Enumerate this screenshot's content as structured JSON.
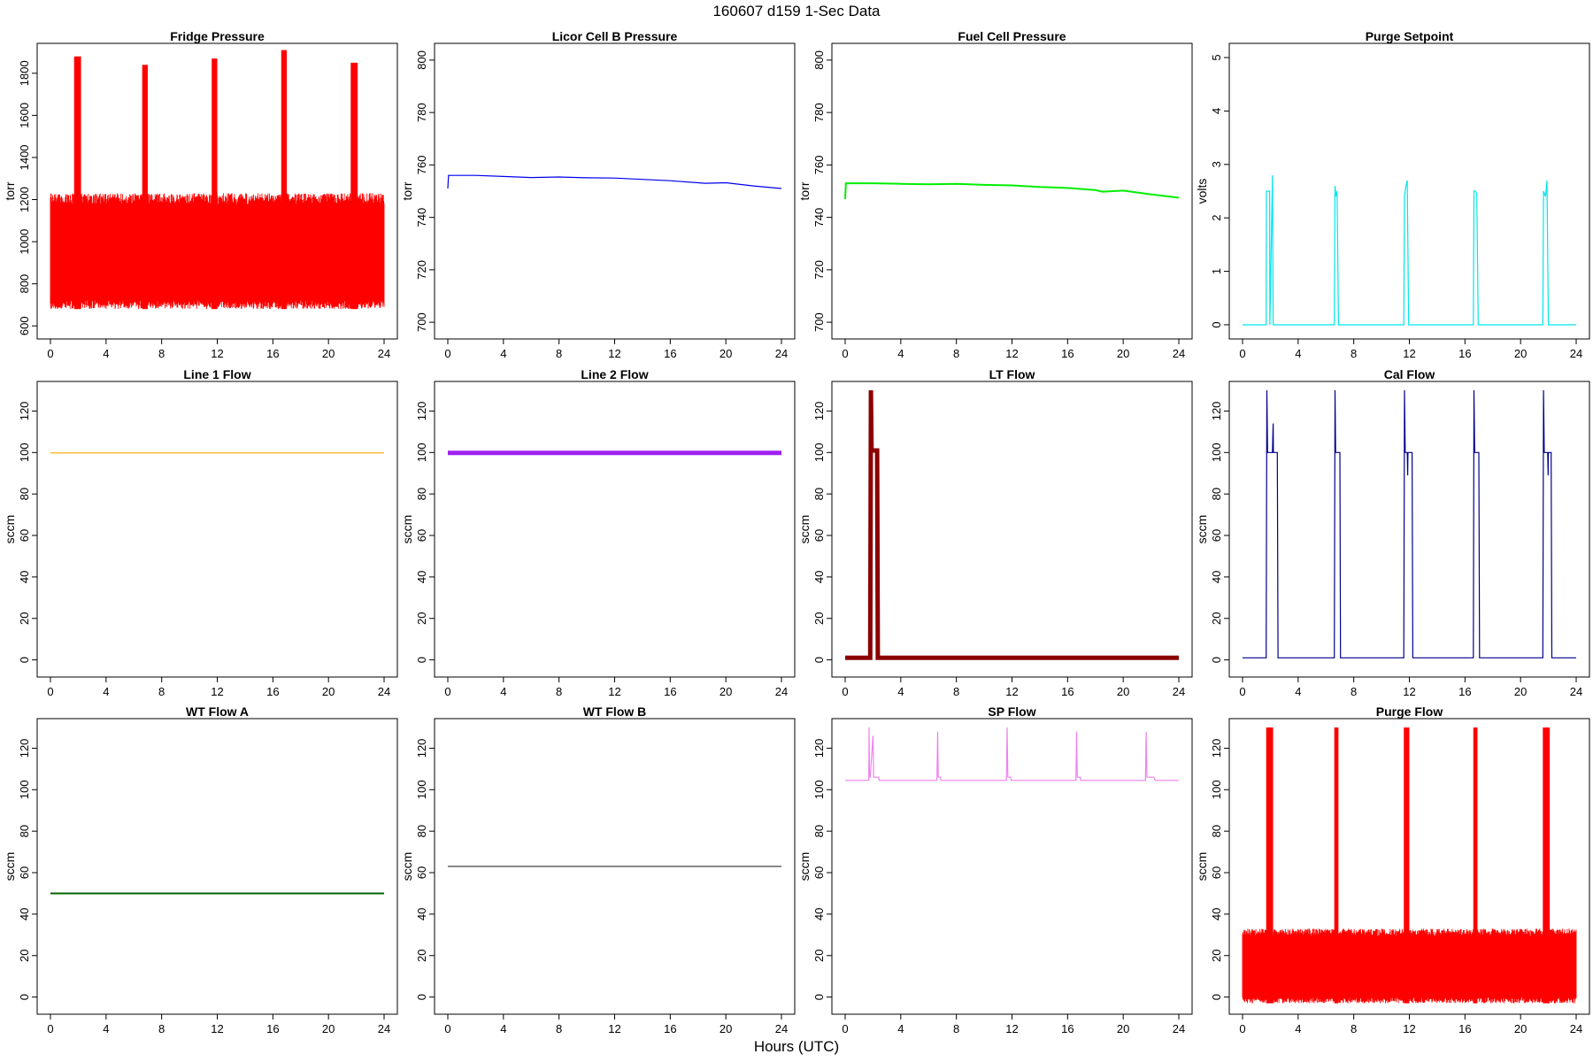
{
  "page": {
    "title": "160607   d159   1-Sec Data",
    "xlabel": "Hours (UTC)"
  },
  "chart_data": [
    {
      "id": "fridge_pressure",
      "type": "line",
      "title": "Fridge Pressure",
      "ylabel": "torr",
      "color": "#ff0000",
      "xlim": [
        0,
        24
      ],
      "ylim": [
        580,
        1900
      ],
      "xticks": [
        0,
        4,
        8,
        12,
        16,
        20,
        24
      ],
      "yticks": [
        600,
        800,
        1000,
        1200,
        1400,
        1600,
        1800
      ],
      "baseline": {
        "low": 680,
        "high": 1230
      },
      "spikes": [
        {
          "start": 1.7,
          "end": 2.2,
          "value": 1880
        },
        {
          "start": 6.6,
          "end": 7.0,
          "value": 1840
        },
        {
          "start": 11.6,
          "end": 12.0,
          "value": 1870
        },
        {
          "start": 16.6,
          "end": 17.0,
          "value": 1910
        },
        {
          "start": 21.6,
          "end": 22.1,
          "value": 1850
        }
      ]
    },
    {
      "id": "licor_cell_b_pressure",
      "type": "line",
      "title": "Licor Cell B Pressure",
      "ylabel": "torr",
      "color": "#0000ee",
      "xlim": [
        0,
        24
      ],
      "ylim": [
        697,
        803
      ],
      "xticks": [
        0,
        4,
        8,
        12,
        16,
        20,
        24
      ],
      "yticks": [
        700,
        720,
        740,
        760,
        780,
        800
      ],
      "x": [
        0,
        0.05,
        2,
        4,
        6,
        8,
        10,
        12,
        14,
        16,
        18,
        18.5,
        20,
        22,
        24
      ],
      "y": [
        751,
        756,
        756,
        755.6,
        755.2,
        755.4,
        755.1,
        755,
        754.5,
        754,
        753.2,
        753,
        753.2,
        752,
        751
      ]
    },
    {
      "id": "fuel_cell_pressure",
      "type": "line",
      "title": "Fuel Cell Pressure",
      "ylabel": "torr",
      "color": "#00ee00",
      "xlim": [
        0,
        24
      ],
      "ylim": [
        697,
        803
      ],
      "xticks": [
        0,
        4,
        8,
        12,
        16,
        20,
        24
      ],
      "yticks": [
        700,
        720,
        740,
        760,
        780,
        800
      ],
      "x": [
        0,
        0.05,
        2,
        4,
        6,
        8,
        10,
        12,
        14,
        16,
        18,
        18.5,
        20,
        22,
        24
      ],
      "y": [
        747,
        753,
        753,
        752.8,
        752.6,
        752.8,
        752.4,
        752.2,
        751.6,
        751.2,
        750.4,
        749.8,
        750.2,
        748.8,
        747.5
      ]
    },
    {
      "id": "purge_setpoint",
      "type": "line",
      "title": "Purge Setpoint",
      "ylabel": "volts",
      "color": "#00e5ee",
      "xlim": [
        0,
        24
      ],
      "ylim": [
        -0.1,
        5.1
      ],
      "xticks": [
        0,
        4,
        8,
        12,
        16,
        20,
        24
      ],
      "yticks": [
        0,
        1,
        2,
        3,
        4,
        5
      ],
      "x": [
        0,
        1.7,
        1.72,
        1.95,
        1.97,
        2.15,
        2.2,
        2.3,
        6.6,
        6.65,
        6.72,
        6.8,
        6.9,
        11.6,
        11.65,
        11.75,
        11.85,
        11.95,
        16.6,
        16.65,
        16.75,
        16.85,
        16.95,
        21.6,
        21.65,
        21.8,
        21.9,
        22.0,
        24
      ],
      "y": [
        0,
        0,
        2.5,
        2.5,
        0,
        2.8,
        0,
        0,
        0,
        2.6,
        2.4,
        2.5,
        0,
        0,
        2.4,
        2.6,
        2.7,
        0,
        0,
        2.5,
        2.5,
        2.45,
        0,
        0,
        2.5,
        2.4,
        2.7,
        0,
        0
      ]
    },
    {
      "id": "line_1_flow",
      "type": "line",
      "title": "Line 1 Flow",
      "ylabel": "sccm",
      "color": "#ffa500",
      "xlim": [
        0,
        24
      ],
      "ylim": [
        -4,
        130
      ],
      "xticks": [
        0,
        4,
        8,
        12,
        16,
        20,
        24
      ],
      "yticks": [
        0,
        20,
        40,
        60,
        80,
        100,
        120
      ],
      "x": [
        0,
        24
      ],
      "y": [
        99.8,
        99.8
      ]
    },
    {
      "id": "line_2_flow",
      "type": "line",
      "title": "Line 2 Flow",
      "ylabel": "sccm",
      "color": "#a020f0",
      "xlim": [
        0,
        24
      ],
      "ylim": [
        -4,
        130
      ],
      "xticks": [
        0,
        4,
        8,
        12,
        16,
        20,
        24
      ],
      "yticks": [
        0,
        20,
        40,
        60,
        80,
        100,
        120
      ],
      "x": [
        0,
        24
      ],
      "y": [
        99.8,
        99.8
      ]
    },
    {
      "id": "lt_flow",
      "type": "line",
      "title": "LT Flow",
      "ylabel": "sccm",
      "color": "#8b0000",
      "xlim": [
        0,
        24
      ],
      "ylim": [
        -4,
        130
      ],
      "xticks": [
        0,
        4,
        8,
        12,
        16,
        20,
        24
      ],
      "yticks": [
        0,
        20,
        40,
        60,
        80,
        100,
        120
      ],
      "x": [
        0,
        1.8,
        1.85,
        1.9,
        2.3,
        2.35,
        24
      ],
      "y": [
        1,
        1,
        130,
        101,
        101,
        1,
        1
      ]
    },
    {
      "id": "cal_flow",
      "type": "line",
      "title": "Cal Flow",
      "ylabel": "sccm",
      "color": "#00008b",
      "xlim": [
        0,
        24
      ],
      "ylim": [
        -4,
        130
      ],
      "xticks": [
        0,
        4,
        8,
        12,
        16,
        20,
        24
      ],
      "yticks": [
        0,
        20,
        40,
        60,
        80,
        100,
        120
      ],
      "x": [
        0,
        1.7,
        1.75,
        1.8,
        2.15,
        2.2,
        2.22,
        2.25,
        2.5,
        2.55,
        6.6,
        6.65,
        6.7,
        7.0,
        7.05,
        11.6,
        11.65,
        11.7,
        11.85,
        11.88,
        11.9,
        12.2,
        12.25,
        16.6,
        16.65,
        16.7,
        17.0,
        17.05,
        21.6,
        21.65,
        21.7,
        21.95,
        21.98,
        22.0,
        22.2,
        22.25,
        24
      ],
      "y": [
        1,
        1,
        130,
        100,
        100,
        114,
        100,
        100,
        100,
        1,
        1,
        130,
        100,
        100,
        1,
        1,
        130,
        100,
        100,
        89,
        100,
        100,
        1,
        1,
        130,
        100,
        100,
        1,
        1,
        130,
        100,
        100,
        89,
        100,
        100,
        1,
        1
      ]
    },
    {
      "id": "wt_flow_a",
      "type": "line",
      "title": "WT Flow A",
      "ylabel": "sccm",
      "color": "#006400",
      "xlim": [
        0,
        24
      ],
      "ylim": [
        -4,
        130
      ],
      "xticks": [
        0,
        4,
        8,
        12,
        16,
        20,
        24
      ],
      "yticks": [
        0,
        20,
        40,
        60,
        80,
        100,
        120
      ],
      "x": [
        0,
        24
      ],
      "y": [
        50,
        50
      ]
    },
    {
      "id": "wt_flow_b",
      "type": "line",
      "title": "WT Flow B",
      "ylabel": "sccm",
      "color": "#888888",
      "xlim": [
        0,
        24
      ],
      "ylim": [
        -4,
        130
      ],
      "xticks": [
        0,
        4,
        8,
        12,
        16,
        20,
        24
      ],
      "yticks": [
        0,
        20,
        40,
        60,
        80,
        100,
        120
      ],
      "x": [
        0,
        24
      ],
      "y": [
        63,
        63
      ]
    },
    {
      "id": "sp_flow",
      "type": "line",
      "title": "SP Flow",
      "ylabel": "sccm",
      "color": "#ee82ee",
      "xlim": [
        0,
        24
      ],
      "ylim": [
        -4,
        130
      ],
      "xticks": [
        0,
        4,
        8,
        12,
        16,
        20,
        24
      ],
      "yticks": [
        0,
        20,
        40,
        60,
        80,
        100,
        120
      ],
      "x": [
        0,
        1.7,
        1.72,
        1.75,
        1.8,
        2.0,
        2.05,
        2.4,
        2.45,
        4,
        6.6,
        6.65,
        6.7,
        6.85,
        6.9,
        8,
        10,
        11.6,
        11.65,
        11.7,
        11.9,
        11.95,
        14,
        16.6,
        16.65,
        16.7,
        16.9,
        16.95,
        19,
        21.6,
        21.65,
        21.7,
        22.0,
        22.2,
        22.3,
        24
      ],
      "y": [
        104.5,
        104.5,
        130,
        106,
        106,
        126,
        106,
        106,
        104.5,
        104.5,
        104.5,
        128,
        106,
        106,
        104.5,
        104.5,
        104.5,
        104.5,
        130,
        106,
        106,
        104.5,
        104.5,
        104.5,
        128,
        106,
        106,
        104.5,
        104.5,
        104.5,
        128,
        106,
        106,
        106,
        104.5,
        104.5
      ]
    },
    {
      "id": "purge_flow",
      "type": "line",
      "title": "Purge Flow",
      "ylabel": "sccm",
      "color": "#ff0000",
      "xlim": [
        0,
        24
      ],
      "ylim": [
        -4,
        130
      ],
      "xticks": [
        0,
        4,
        8,
        12,
        16,
        20,
        24
      ],
      "yticks": [
        0,
        20,
        40,
        60,
        80,
        100,
        120
      ],
      "baseline": {
        "low": -3,
        "high": 33
      },
      "spikes": [
        {
          "start": 1.7,
          "end": 2.2,
          "value": 130
        },
        {
          "start": 6.6,
          "end": 6.9,
          "value": 130
        },
        {
          "start": 11.6,
          "end": 12.0,
          "value": 130
        },
        {
          "start": 16.6,
          "end": 16.9,
          "value": 130
        },
        {
          "start": 21.6,
          "end": 22.1,
          "value": 130
        }
      ]
    }
  ]
}
